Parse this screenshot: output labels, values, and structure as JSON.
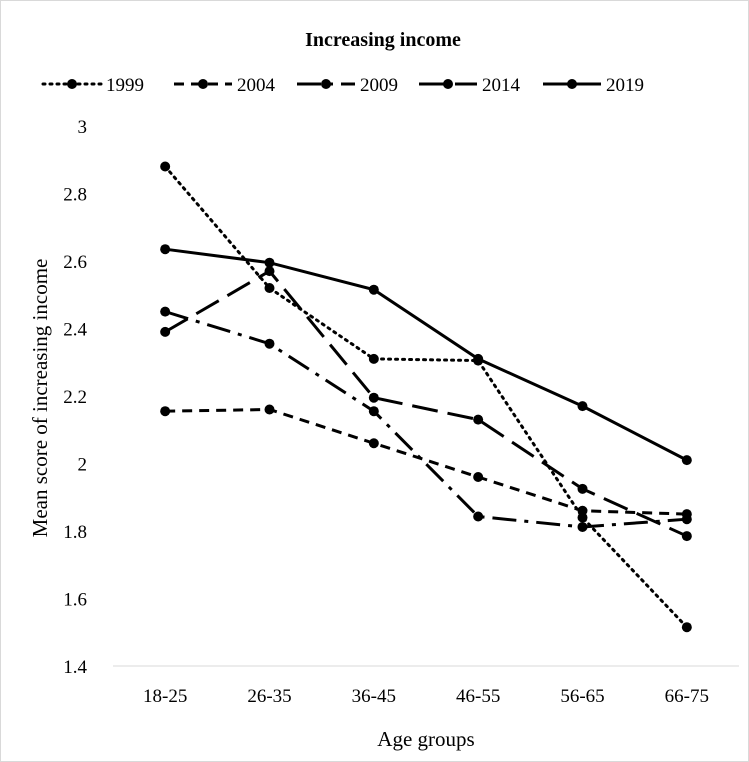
{
  "chart_data": {
    "type": "line",
    "title": "Increasing income",
    "xlabel": "Age groups",
    "ylabel": "Mean score of increasing income",
    "categories": [
      "18-25",
      "26-35",
      "36-45",
      "46-55",
      "56-65",
      "66-75"
    ],
    "ylim": [
      1.4,
      3
    ],
    "yticks": [
      "1.4",
      "1.6",
      "1.8",
      "2",
      "2.2",
      "2.4",
      "2.6",
      "2.8",
      "3"
    ],
    "grid": false,
    "legend_position": "top",
    "series": [
      {
        "name": "1999",
        "dash": "dotted",
        "values": [
          2.88,
          2.52,
          2.31,
          2.305,
          1.84,
          1.515
        ]
      },
      {
        "name": "2004",
        "dash": "dash",
        "values": [
          2.155,
          2.16,
          2.06,
          1.96,
          1.86,
          1.85
        ]
      },
      {
        "name": "2009",
        "dash": "longdash-dot",
        "values": [
          2.45,
          2.355,
          2.155,
          1.843,
          1.812,
          1.835
        ]
      },
      {
        "name": "2014",
        "dash": "longdash",
        "values": [
          2.39,
          2.57,
          2.195,
          2.13,
          1.925,
          1.785
        ]
      },
      {
        "name": "2019",
        "dash": "solid",
        "values": [
          2.635,
          2.595,
          2.515,
          2.31,
          2.17,
          2.01
        ]
      }
    ],
    "colors": {
      "line": "#000000",
      "axis": "#d9d9d9"
    }
  }
}
